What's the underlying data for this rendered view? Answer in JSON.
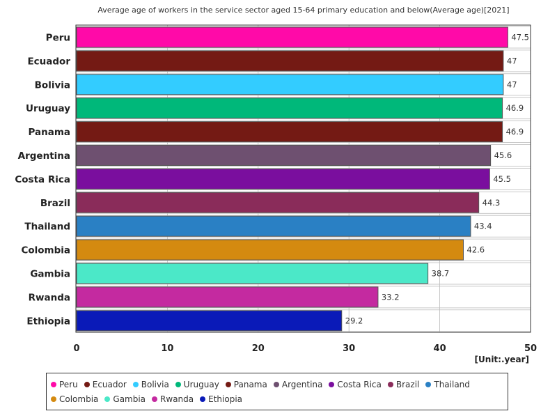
{
  "chart_data": {
    "type": "bar",
    "orientation": "horizontal",
    "title": "Average age of workers in the service sector aged 15-64 primary education and below(Average age)[2021]",
    "unit": "[Unit:.year]",
    "categories": [
      "Peru",
      "Ecuador",
      "Bolivia",
      "Uruguay",
      "Panama",
      "Argentina",
      "Costa Rica",
      "Brazil",
      "Thailand",
      "Colombia",
      "Gambia",
      "Rwanda",
      "Ethiopia"
    ],
    "values": [
      47.5,
      47,
      47,
      46.9,
      46.9,
      45.6,
      45.5,
      44.3,
      43.4,
      42.6,
      38.7,
      33.2,
      29.2
    ],
    "value_labels": [
      "47.5",
      "47",
      "47",
      "46.9",
      "46.9",
      "45.6",
      "45.5",
      "44.3",
      "43.4",
      "42.6",
      "38.7",
      "33.2",
      "29.2"
    ],
    "colors": [
      "#ff0aa8",
      "#741a14",
      "#33ccff",
      "#00b87a",
      "#741a14",
      "#6e5070",
      "#7a0e9e",
      "#8a2c5a",
      "#2a80c4",
      "#d48a10",
      "#4be8c8",
      "#c42aa0",
      "#0a1ab8"
    ],
    "xlim": [
      0,
      50
    ],
    "xticks": [
      "0",
      "10",
      "20",
      "30",
      "40",
      "50"
    ],
    "grid": true,
    "legend_position": "bottom"
  }
}
